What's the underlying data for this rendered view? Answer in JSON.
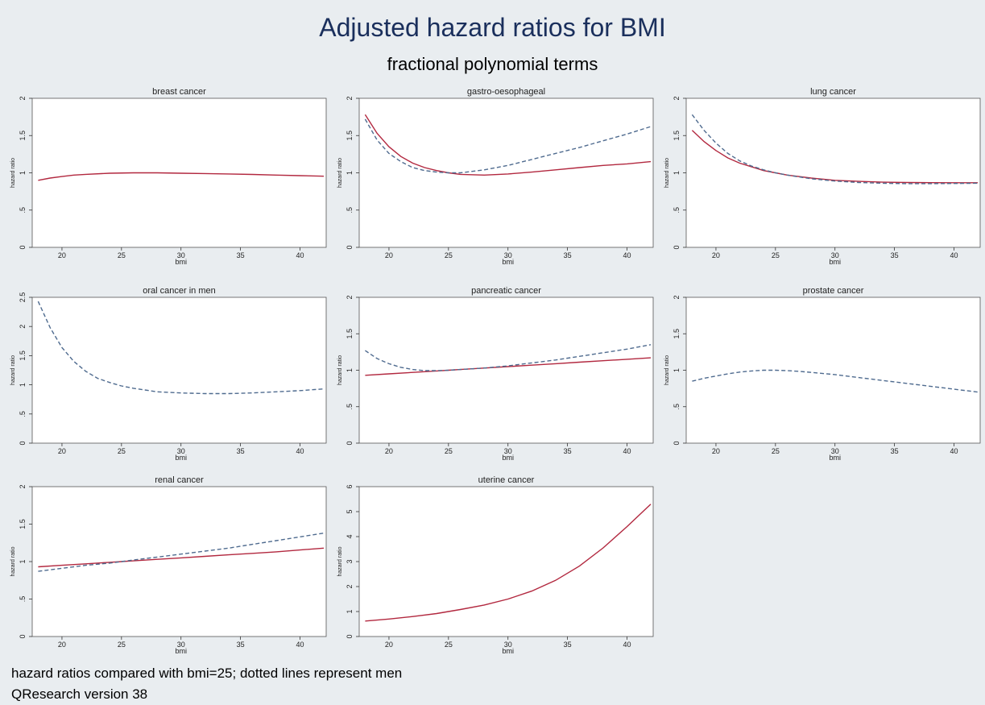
{
  "title": "Adjusted hazard ratios for BMI",
  "subtitle": "fractional polynomial terms",
  "notes": {
    "line1": "hazard ratios compared with bmi=25; dotted lines represent men",
    "line2": "QResearch version 38"
  },
  "colors": {
    "background": "#e9edf0",
    "plot_bg": "#ffffff",
    "title": "#1a2f5c",
    "women_line": "#b2283f",
    "men_line": "#4f6b8f"
  },
  "chart_data": [
    {
      "type": "line",
      "title": "breast cancer",
      "xlabel": "bmi",
      "ylabel": "hazard ratio",
      "xlim": [
        17.5,
        42.2
      ],
      "ylim": [
        0,
        2
      ],
      "xticks": [
        20,
        25,
        30,
        35,
        40
      ],
      "yticks": [
        0,
        0.5,
        1,
        1.5,
        2
      ],
      "ytick_labels": [
        "0",
        ".5",
        "1",
        "1.5",
        "2"
      ],
      "series": [
        {
          "style": "solid",
          "x": [
            18,
            19,
            20,
            21,
            22,
            24,
            26,
            28,
            30,
            32,
            34,
            36,
            38,
            40,
            42
          ],
          "y": [
            0.9,
            0.93,
            0.95,
            0.97,
            0.98,
            0.995,
            1.0,
            1.0,
            0.995,
            0.99,
            0.985,
            0.978,
            0.97,
            0.962,
            0.955
          ]
        }
      ]
    },
    {
      "type": "line",
      "title": "gastro-oesophageal",
      "xlabel": "bmi",
      "ylabel": "hazard ratio",
      "xlim": [
        17.5,
        42.2
      ],
      "ylim": [
        0,
        2
      ],
      "xticks": [
        20,
        25,
        30,
        35,
        40
      ],
      "yticks": [
        0,
        0.5,
        1,
        1.5,
        2
      ],
      "ytick_labels": [
        "0",
        ".5",
        "1",
        "1.5",
        "2"
      ],
      "series": [
        {
          "style": "solid",
          "x": [
            18,
            19,
            20,
            21,
            22,
            23,
            24,
            25,
            26,
            28,
            30,
            32,
            34,
            36,
            38,
            40,
            42
          ],
          "y": [
            1.78,
            1.53,
            1.35,
            1.22,
            1.13,
            1.07,
            1.03,
            1.0,
            0.98,
            0.97,
            0.985,
            1.01,
            1.04,
            1.07,
            1.1,
            1.12,
            1.15
          ]
        },
        {
          "style": "dashed",
          "x": [
            18,
            19,
            20,
            21,
            22,
            23,
            24,
            25,
            26,
            28,
            30,
            32,
            34,
            36,
            38,
            40,
            42
          ],
          "y": [
            1.72,
            1.44,
            1.26,
            1.15,
            1.07,
            1.03,
            1.01,
            1.0,
            1.0,
            1.04,
            1.1,
            1.18,
            1.26,
            1.34,
            1.43,
            1.52,
            1.62
          ]
        }
      ]
    },
    {
      "type": "line",
      "title": "lung cancer",
      "xlabel": "bmi",
      "ylabel": "hazard ratio",
      "xlim": [
        17.5,
        42.2
      ],
      "ylim": [
        0,
        2
      ],
      "xticks": [
        20,
        25,
        30,
        35,
        40
      ],
      "yticks": [
        0,
        0.5,
        1,
        1.5,
        2
      ],
      "ytick_labels": [
        "0",
        ".5",
        "1",
        "1.5",
        "2"
      ],
      "series": [
        {
          "style": "solid",
          "x": [
            18,
            19,
            20,
            21,
            22,
            23,
            24,
            25,
            26,
            28,
            30,
            32,
            34,
            36,
            38,
            40,
            42
          ],
          "y": [
            1.57,
            1.42,
            1.3,
            1.2,
            1.13,
            1.08,
            1.03,
            1.0,
            0.97,
            0.93,
            0.9,
            0.885,
            0.875,
            0.87,
            0.868,
            0.867,
            0.867
          ]
        },
        {
          "style": "dashed",
          "x": [
            18,
            19,
            20,
            21,
            22,
            23,
            24,
            25,
            26,
            28,
            30,
            32,
            34,
            36,
            38,
            40,
            42
          ],
          "y": [
            1.78,
            1.57,
            1.4,
            1.26,
            1.16,
            1.09,
            1.04,
            1.0,
            0.97,
            0.92,
            0.89,
            0.87,
            0.86,
            0.855,
            0.855,
            0.857,
            0.86
          ]
        }
      ]
    },
    {
      "type": "line",
      "title": "oral cancer in men",
      "xlabel": "bmi",
      "ylabel": "hazard ratio",
      "xlim": [
        17.5,
        42.2
      ],
      "ylim": [
        0,
        2.5
      ],
      "xticks": [
        20,
        25,
        30,
        35,
        40
      ],
      "yticks": [
        0,
        0.5,
        1,
        1.5,
        2,
        2.5
      ],
      "ytick_labels": [
        "0",
        ".5",
        "1",
        "1.5",
        "2",
        "2.5"
      ],
      "series": [
        {
          "style": "dashed",
          "x": [
            18,
            19,
            20,
            21,
            22,
            23,
            24,
            25,
            26,
            28,
            30,
            32,
            34,
            36,
            38,
            40,
            42
          ],
          "y": [
            2.43,
            1.98,
            1.64,
            1.4,
            1.23,
            1.11,
            1.04,
            0.98,
            0.94,
            0.88,
            0.86,
            0.85,
            0.85,
            0.86,
            0.88,
            0.9,
            0.93
          ]
        }
      ]
    },
    {
      "type": "line",
      "title": "pancreatic cancer",
      "xlabel": "bmi",
      "ylabel": "hazard ratio",
      "xlim": [
        17.5,
        42.2
      ],
      "ylim": [
        0,
        2
      ],
      "xticks": [
        20,
        25,
        30,
        35,
        40
      ],
      "yticks": [
        0,
        0.5,
        1,
        1.5,
        2
      ],
      "ytick_labels": [
        "0",
        ".5",
        "1",
        "1.5",
        "2"
      ],
      "series": [
        {
          "style": "solid",
          "x": [
            18,
            20,
            22,
            24,
            25,
            26,
            28,
            30,
            32,
            34,
            36,
            38,
            40,
            42
          ],
          "y": [
            0.93,
            0.95,
            0.97,
            0.99,
            1.0,
            1.01,
            1.03,
            1.05,
            1.07,
            1.09,
            1.11,
            1.13,
            1.15,
            1.17
          ]
        },
        {
          "style": "dashed",
          "x": [
            18,
            19,
            20,
            21,
            22,
            23,
            24,
            25,
            26,
            28,
            30,
            32,
            34,
            36,
            38,
            40,
            42
          ],
          "y": [
            1.27,
            1.16,
            1.09,
            1.04,
            1.01,
            0.995,
            0.995,
            1.0,
            1.01,
            1.03,
            1.06,
            1.1,
            1.14,
            1.19,
            1.24,
            1.29,
            1.35
          ]
        }
      ]
    },
    {
      "type": "line",
      "title": "prostate cancer",
      "xlabel": "bmi",
      "ylabel": "hazard ratio",
      "xlim": [
        17.5,
        42.2
      ],
      "ylim": [
        0,
        2
      ],
      "xticks": [
        20,
        25,
        30,
        35,
        40
      ],
      "yticks": [
        0,
        0.5,
        1,
        1.5,
        2
      ],
      "ytick_labels": [
        "0",
        ".5",
        "1",
        "1.5",
        "2"
      ],
      "series": [
        {
          "style": "dashed",
          "x": [
            18,
            19,
            20,
            21,
            22,
            23,
            24,
            25,
            26,
            27,
            28,
            30,
            32,
            34,
            36,
            38,
            40,
            42
          ],
          "y": [
            0.85,
            0.89,
            0.92,
            0.95,
            0.975,
            0.99,
            1.0,
            1.0,
            0.995,
            0.985,
            0.97,
            0.94,
            0.9,
            0.86,
            0.82,
            0.78,
            0.74,
            0.7
          ]
        }
      ]
    },
    {
      "type": "line",
      "title": "renal cancer",
      "xlabel": "bmi",
      "ylabel": "hazard ratio",
      "xlim": [
        17.5,
        42.2
      ],
      "ylim": [
        0,
        2
      ],
      "xticks": [
        20,
        25,
        30,
        35,
        40
      ],
      "yticks": [
        0,
        0.5,
        1,
        1.5,
        2
      ],
      "ytick_labels": [
        "0",
        ".5",
        "1",
        "1.5",
        "2"
      ],
      "series": [
        {
          "style": "solid",
          "x": [
            18,
            20,
            22,
            24,
            25,
            26,
            28,
            30,
            32,
            34,
            36,
            38,
            40,
            42
          ],
          "y": [
            0.93,
            0.95,
            0.97,
            0.99,
            1.0,
            1.01,
            1.03,
            1.05,
            1.07,
            1.09,
            1.11,
            1.13,
            1.155,
            1.18
          ]
        },
        {
          "style": "dashed",
          "x": [
            18,
            20,
            22,
            24,
            25,
            26,
            28,
            30,
            32,
            34,
            36,
            38,
            40,
            42
          ],
          "y": [
            0.87,
            0.91,
            0.95,
            0.98,
            1.0,
            1.02,
            1.06,
            1.1,
            1.14,
            1.18,
            1.23,
            1.28,
            1.33,
            1.38
          ]
        }
      ]
    },
    {
      "type": "line",
      "title": "uterine cancer",
      "xlabel": "bmi",
      "ylabel": "hazard ratio",
      "xlim": [
        17.5,
        42.2
      ],
      "ylim": [
        0,
        6
      ],
      "xticks": [
        20,
        25,
        30,
        35,
        40
      ],
      "yticks": [
        0,
        1,
        2,
        3,
        4,
        5,
        6
      ],
      "ytick_labels": [
        "0",
        "1",
        "2",
        "3",
        "4",
        "5",
        "6"
      ],
      "series": [
        {
          "style": "solid",
          "x": [
            18,
            20,
            22,
            24,
            25,
            26,
            28,
            30,
            32,
            34,
            36,
            38,
            40,
            42
          ],
          "y": [
            0.62,
            0.7,
            0.8,
            0.92,
            1.0,
            1.08,
            1.26,
            1.5,
            1.82,
            2.25,
            2.82,
            3.55,
            4.4,
            5.3
          ]
        }
      ]
    }
  ]
}
